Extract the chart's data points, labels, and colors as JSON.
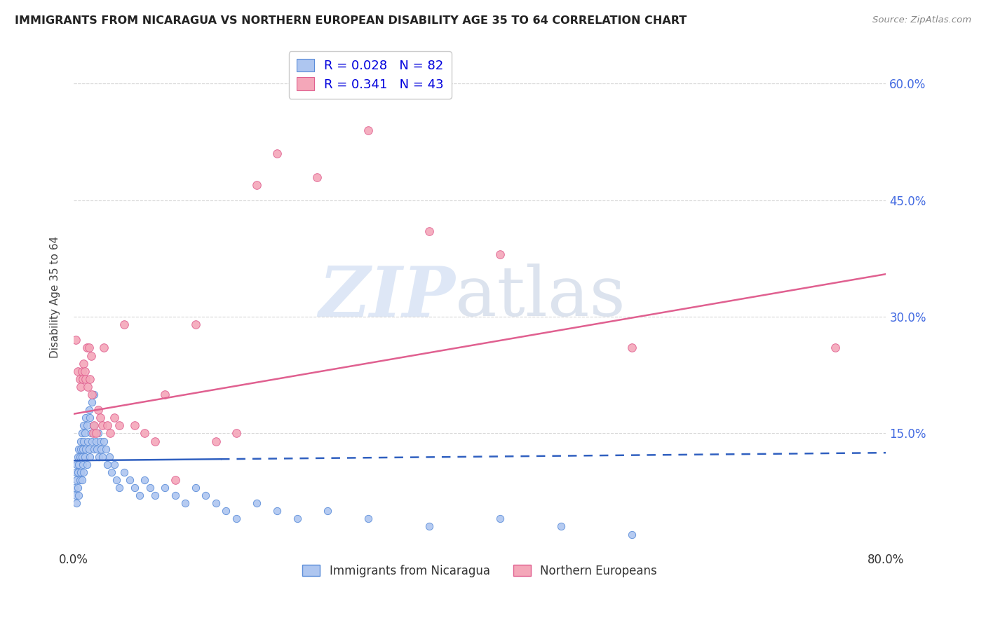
{
  "title": "IMMIGRANTS FROM NICARAGUA VS NORTHERN EUROPEAN DISABILITY AGE 35 TO 64 CORRELATION CHART",
  "source": "Source: ZipAtlas.com",
  "ylabel": "Disability Age 35 to 64",
  "xlim": [
    0.0,
    0.8
  ],
  "ylim": [
    0.0,
    0.65
  ],
  "legend_label1": "Immigrants from Nicaragua",
  "legend_label2": "Northern Europeans",
  "R1": 0.028,
  "N1": 82,
  "R2": 0.341,
  "N2": 43,
  "scatter1_color": "#aec6f0",
  "scatter1_edge": "#5b8dd9",
  "scatter2_color": "#f4a7b9",
  "scatter2_edge": "#e06090",
  "line1_color": "#3060c0",
  "line2_color": "#e06090",
  "background_color": "#ffffff",
  "grid_color": "#d8d8d8",
  "title_color": "#222222",
  "legend_text_color": "#0000dd",
  "watermark_zip_color": "#c8d8f0",
  "watermark_atlas_color": "#c0cce0",
  "scatter1_x": [
    0.001,
    0.002,
    0.002,
    0.003,
    0.003,
    0.003,
    0.004,
    0.004,
    0.004,
    0.005,
    0.005,
    0.005,
    0.006,
    0.006,
    0.007,
    0.007,
    0.007,
    0.008,
    0.008,
    0.008,
    0.009,
    0.009,
    0.01,
    0.01,
    0.01,
    0.011,
    0.011,
    0.012,
    0.012,
    0.013,
    0.013,
    0.014,
    0.015,
    0.015,
    0.016,
    0.016,
    0.017,
    0.018,
    0.018,
    0.019,
    0.02,
    0.02,
    0.021,
    0.022,
    0.023,
    0.024,
    0.025,
    0.026,
    0.027,
    0.028,
    0.03,
    0.032,
    0.033,
    0.035,
    0.037,
    0.04,
    0.042,
    0.045,
    0.05,
    0.055,
    0.06,
    0.065,
    0.07,
    0.075,
    0.08,
    0.09,
    0.1,
    0.11,
    0.12,
    0.13,
    0.14,
    0.15,
    0.16,
    0.18,
    0.2,
    0.22,
    0.25,
    0.29,
    0.35,
    0.42,
    0.48,
    0.55
  ],
  "scatter1_y": [
    0.08,
    0.1,
    0.07,
    0.11,
    0.09,
    0.06,
    0.12,
    0.1,
    0.08,
    0.13,
    0.11,
    0.07,
    0.12,
    0.09,
    0.14,
    0.13,
    0.1,
    0.15,
    0.12,
    0.09,
    0.13,
    0.11,
    0.16,
    0.14,
    0.1,
    0.15,
    0.12,
    0.17,
    0.13,
    0.16,
    0.11,
    0.14,
    0.18,
    0.13,
    0.17,
    0.12,
    0.15,
    0.19,
    0.14,
    0.16,
    0.2,
    0.13,
    0.15,
    0.14,
    0.13,
    0.15,
    0.12,
    0.14,
    0.13,
    0.12,
    0.14,
    0.13,
    0.11,
    0.12,
    0.1,
    0.11,
    0.09,
    0.08,
    0.1,
    0.09,
    0.08,
    0.07,
    0.09,
    0.08,
    0.07,
    0.08,
    0.07,
    0.06,
    0.08,
    0.07,
    0.06,
    0.05,
    0.04,
    0.06,
    0.05,
    0.04,
    0.05,
    0.04,
    0.03,
    0.04,
    0.03,
    0.02
  ],
  "scatter2_x": [
    0.002,
    0.004,
    0.006,
    0.007,
    0.008,
    0.009,
    0.01,
    0.011,
    0.012,
    0.013,
    0.014,
    0.015,
    0.016,
    0.017,
    0.018,
    0.019,
    0.02,
    0.022,
    0.024,
    0.026,
    0.028,
    0.03,
    0.033,
    0.036,
    0.04,
    0.045,
    0.05,
    0.06,
    0.07,
    0.08,
    0.09,
    0.1,
    0.12,
    0.14,
    0.16,
    0.18,
    0.2,
    0.24,
    0.29,
    0.35,
    0.42,
    0.55,
    0.75
  ],
  "scatter2_y": [
    0.27,
    0.23,
    0.22,
    0.21,
    0.23,
    0.22,
    0.24,
    0.23,
    0.22,
    0.26,
    0.21,
    0.26,
    0.22,
    0.25,
    0.2,
    0.15,
    0.16,
    0.15,
    0.18,
    0.17,
    0.16,
    0.26,
    0.16,
    0.15,
    0.17,
    0.16,
    0.29,
    0.16,
    0.15,
    0.14,
    0.2,
    0.09,
    0.29,
    0.14,
    0.15,
    0.47,
    0.51,
    0.48,
    0.54,
    0.41,
    0.38,
    0.26,
    0.26
  ],
  "line1_y_start": 0.115,
  "line1_y_end": 0.125,
  "line2_y_start": 0.175,
  "line2_y_end": 0.355,
  "line1_solid_end": 0.145,
  "line1_dashed_start": 0.145
}
